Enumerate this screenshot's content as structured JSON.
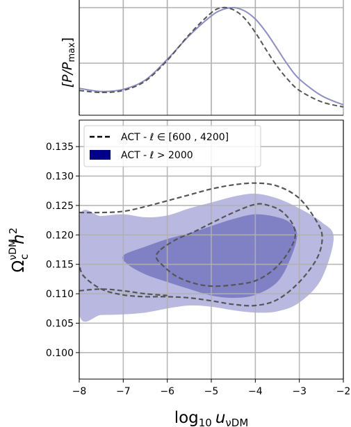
{
  "chart_data": [
    {
      "type": "line",
      "panel": "top-marginal",
      "ylabel": "[P/P",
      "ylabel_sub": "max",
      "ylabel_end": "]",
      "xlim": [
        -8,
        -2
      ],
      "ylim": [
        0,
        1
      ],
      "grid": true,
      "series": [
        {
          "name": "ACT - ℓ > 2000",
          "color": "#8c8cc8",
          "style": "solid",
          "x": [
            -8,
            -7.5,
            -7,
            -6.5,
            -6,
            -5.5,
            -5,
            -4.75,
            -4.5,
            -4.25,
            -4,
            -3.75,
            -3.5,
            -3.25,
            -3,
            -2.5,
            -2
          ],
          "y": [
            0.22,
            0.19,
            0.21,
            0.3,
            0.5,
            0.73,
            0.92,
            0.98,
            1.0,
            0.97,
            0.89,
            0.76,
            0.6,
            0.44,
            0.31,
            0.15,
            0.06
          ]
        },
        {
          "name": "ACT - ℓ ∈ [600 , 4200]",
          "color": "#555555",
          "style": "dashed",
          "x": [
            -8,
            -7.5,
            -7,
            -6.5,
            -6,
            -5.5,
            -5,
            -4.75,
            -4.5,
            -4.25,
            -4,
            -3.75,
            -3.5,
            -3.25,
            -3,
            -2.5,
            -2
          ],
          "y": [
            0.2,
            0.18,
            0.2,
            0.29,
            0.49,
            0.74,
            0.95,
            1.0,
            0.98,
            0.9,
            0.76,
            0.59,
            0.43,
            0.3,
            0.2,
            0.09,
            0.04
          ]
        }
      ]
    },
    {
      "type": "contour",
      "panel": "main-2d",
      "xlabel": "log",
      "xlabel_sub": "10",
      "xlabel_var": "u",
      "xlabel_var_sub": "νDM",
      "ylabel": "Ω",
      "ylabel_sub": "c",
      "ylabel_sup": "νDM",
      "ylabel_rest": "h",
      "ylabel_rest_sup": "2",
      "xlim": [
        -8,
        -2
      ],
      "ylim": [
        0.0955,
        0.1395
      ],
      "xticks": [
        "−8",
        "−7",
        "−6",
        "−5",
        "−4",
        "−3",
        "−2"
      ],
      "xtick_values": [
        -8,
        -7,
        -6,
        -5,
        -4,
        -3,
        -2
      ],
      "yticks": [
        "0.100",
        "0.105",
        "0.110",
        "0.115",
        "0.120",
        "0.125",
        "0.130",
        "0.135"
      ],
      "ytick_values": [
        0.1,
        0.105,
        0.11,
        0.115,
        0.12,
        0.125,
        0.13,
        0.135
      ],
      "grid": true,
      "legend": {
        "position": "top-left",
        "entries": [
          {
            "label": "ACT - ℓ ∈ [600 , 4200]",
            "style": "dashed",
            "color": "#444444"
          },
          {
            "label": "ACT - ℓ > 2000",
            "style": "filled",
            "color": "#00008b"
          }
        ]
      },
      "filled_regions": [
        {
          "name": "ACT - ℓ > 2000 (95%)",
          "color": "#b8b8e0",
          "points": [
            [
              -8,
              0.123
            ],
            [
              -7.5,
              0.1232
            ],
            [
              -7,
              0.1235
            ],
            [
              -6.5,
              0.123
            ],
            [
              -6,
              0.1233
            ],
            [
              -5.5,
              0.1245
            ],
            [
              -5,
              0.1255
            ],
            [
              -4.5,
              0.1265
            ],
            [
              -4,
              0.127
            ],
            [
              -3.5,
              0.1262
            ],
            [
              -3,
              0.1245
            ],
            [
              -2.5,
              0.1222
            ],
            [
              -2.22,
              0.1195
            ],
            [
              -2.5,
              0.1125
            ],
            [
              -3,
              0.1085
            ],
            [
              -3.5,
              0.107
            ],
            [
              -4,
              0.1068
            ],
            [
              -4.5,
              0.1072
            ],
            [
              -5,
              0.1078
            ],
            [
              -5.5,
              0.108
            ],
            [
              -6,
              0.1075
            ],
            [
              -6.5,
              0.1068
            ],
            [
              -7,
              0.1065
            ],
            [
              -7.5,
              0.1064
            ],
            [
              -8,
              0.1065
            ]
          ]
        },
        {
          "name": "ACT - ℓ > 2000 (68%)",
          "color": "#8080c4",
          "points": [
            [
              -7.0,
              0.1165
            ],
            [
              -6.5,
              0.118
            ],
            [
              -6,
              0.1193
            ],
            [
              -5.5,
              0.1203
            ],
            [
              -5,
              0.1215
            ],
            [
              -4.5,
              0.1227
            ],
            [
              -4,
              0.1235
            ],
            [
              -3.5,
              0.123
            ],
            [
              -3.2,
              0.122
            ],
            [
              -3.05,
              0.12
            ],
            [
              -3.2,
              0.116
            ],
            [
              -3.5,
              0.112
            ],
            [
              -4,
              0.1098
            ],
            [
              -4.5,
              0.1093
            ],
            [
              -5,
              0.1097
            ],
            [
              -5.5,
              0.1108
            ],
            [
              -6,
              0.112
            ],
            [
              -6.5,
              0.1133
            ],
            [
              -6.9,
              0.115
            ]
          ]
        }
      ],
      "dashed_contours": [
        {
          "name": "ACT - ℓ ∈ [600 , 4200] (95% upper)",
          "color": "#555555",
          "closed": false,
          "points": [
            [
              -8,
              0.1238
            ],
            [
              -7.5,
              0.1238
            ],
            [
              -7,
              0.124
            ],
            [
              -6.5,
              0.1248
            ],
            [
              -6,
              0.1258
            ],
            [
              -5.5,
              0.1268
            ],
            [
              -5,
              0.1278
            ],
            [
              -4.5,
              0.1285
            ],
            [
              -4,
              0.1288
            ],
            [
              -3.5,
              0.1283
            ],
            [
              -3.0,
              0.1262
            ],
            [
              -2.6,
              0.1222
            ],
            [
              -2.48,
              0.1195
            ],
            [
              -2.6,
              0.116
            ],
            [
              -3.0,
              0.112
            ],
            [
              -3.5,
              0.109
            ],
            [
              -4,
              0.108
            ],
            [
              -4.5,
              0.1082
            ],
            [
              -5,
              0.1088
            ],
            [
              -5.5,
              0.1093
            ],
            [
              -6,
              0.1095
            ],
            [
              -6.5,
              0.1095
            ],
            [
              -7,
              0.1098
            ],
            [
              -7.5,
              0.1108
            ],
            [
              -7.9,
              0.113
            ],
            [
              -8,
              0.115
            ]
          ]
        },
        {
          "name": "ACT - ℓ ∈ [600 , 4200] (95% lower)",
          "color": "#555555",
          "closed": false,
          "points": [
            [
              -8,
              0.1105
            ],
            [
              -7.5,
              0.1108
            ],
            [
              -7,
              0.1105
            ],
            [
              -6.5,
              0.11
            ],
            [
              -6,
              0.1097
            ]
          ]
        },
        {
          "name": "ACT - ℓ ∈ [600 , 4200] (68%)",
          "color": "#555555",
          "closed": true,
          "points": [
            [
              -6.15,
              0.1175
            ],
            [
              -5.8,
              0.1192
            ],
            [
              -5.4,
              0.1205
            ],
            [
              -5,
              0.122
            ],
            [
              -4.5,
              0.1238
            ],
            [
              -4,
              0.1252
            ],
            [
              -3.7,
              0.125
            ],
            [
              -3.4,
              0.124
            ],
            [
              -3.15,
              0.1218
            ],
            [
              -3.1,
              0.1195
            ],
            [
              -3.3,
              0.1165
            ],
            [
              -3.6,
              0.114
            ],
            [
              -4,
              0.1122
            ],
            [
              -4.5,
              0.1115
            ],
            [
              -5,
              0.1113
            ],
            [
              -5.4,
              0.1118
            ],
            [
              -5.8,
              0.113
            ],
            [
              -6.1,
              0.1148
            ],
            [
              -6.25,
              0.1162
            ]
          ]
        }
      ]
    }
  ]
}
